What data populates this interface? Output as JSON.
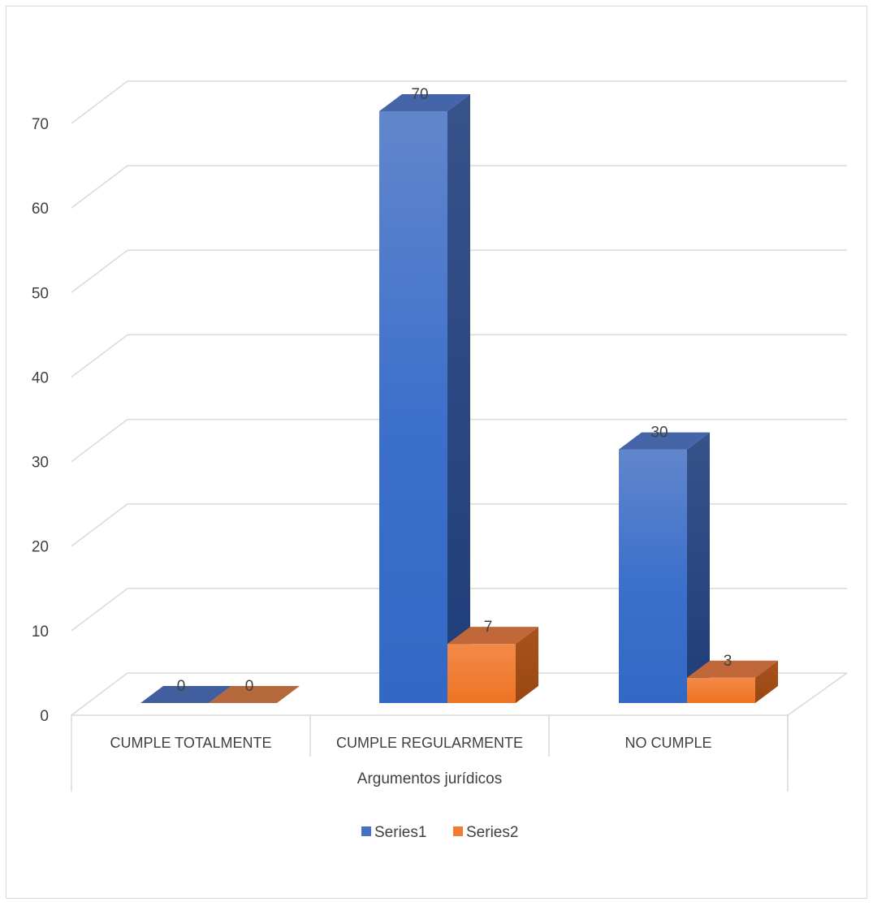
{
  "chart_data": {
    "type": "bar",
    "title": "",
    "xlabel": "Argumentos jurídicos",
    "ylabel": "",
    "categories": [
      "CUMPLE TOTALMENTE",
      "CUMPLE REGULARMENTE",
      "NO CUMPLE"
    ],
    "series": [
      {
        "name": "Series1",
        "values": [
          0,
          70,
          30
        ],
        "labels": [
          "0",
          "70",
          "30"
        ],
        "color": "#4472c4"
      },
      {
        "name": "Series2",
        "values": [
          0,
          7,
          3
        ],
        "labels": [
          "0",
          "7",
          "3"
        ],
        "color": "#ed7d31"
      }
    ],
    "ylim": [
      0,
      70
    ],
    "yticks": [
      "0",
      "10",
      "20",
      "30",
      "40",
      "50",
      "60",
      "70"
    ],
    "grid": true,
    "style": "3d-clustered-column",
    "legend_position": "bottom"
  }
}
